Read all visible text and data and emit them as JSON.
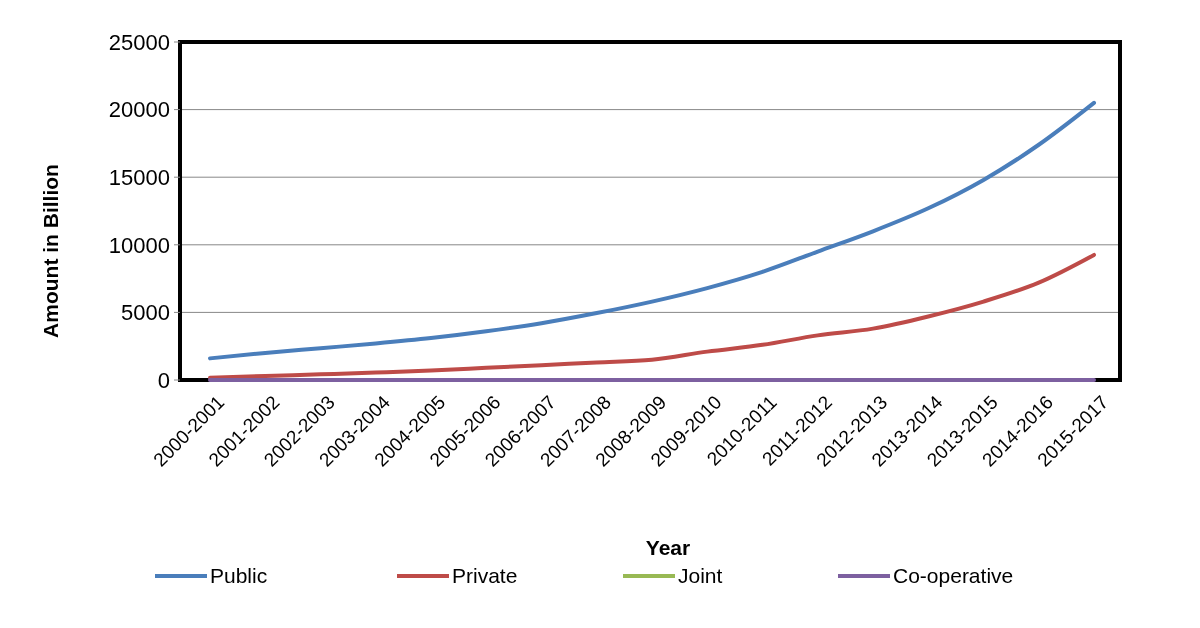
{
  "chart_data": {
    "type": "line",
    "xlabel": "Year",
    "ylabel": "Amount in Billion",
    "categories": [
      "2000-2001",
      "2001-2002",
      "2002-2003",
      "2003-2004",
      "2004-2005",
      "2005-2006",
      "2006-2007",
      "2007-2008",
      "2008-2009",
      "2009-2010",
      "2010-2011",
      "2011-2012",
      "2012-2013",
      "2013-2014",
      "2013-2015",
      "2014-2016",
      "2015-2017"
    ],
    "series": [
      {
        "name": "Public",
        "color": "#4a7ebb",
        "values": [
          1600,
          2000,
          2350,
          2700,
          3100,
          3600,
          4200,
          4950,
          5800,
          6800,
          8000,
          9500,
          11000,
          12700,
          14800,
          17400,
          20500
        ]
      },
      {
        "name": "Private",
        "color": "#be4b48",
        "values": [
          170,
          300,
          420,
          550,
          700,
          900,
          1100,
          1300,
          1500,
          2100,
          2600,
          3300,
          3800,
          4700,
          5800,
          7200,
          9250
        ]
      },
      {
        "name": "Joint",
        "color": "#98b954",
        "values": [
          null,
          null,
          null,
          null,
          null,
          null,
          null,
          null,
          null,
          null,
          null,
          null,
          null,
          null,
          null,
          null,
          null
        ]
      },
      {
        "name": "Co-operative",
        "color": "#7d60a0",
        "values": [
          0,
          0,
          0,
          0,
          0,
          0,
          0,
          0,
          0,
          0,
          0,
          0,
          0,
          0,
          0,
          0,
          0
        ]
      }
    ],
    "ylim": [
      0,
      25000
    ],
    "yticks": [
      0,
      5000,
      10000,
      15000,
      20000,
      25000
    ],
    "grid": "y",
    "legend": "bottom",
    "marker": "none",
    "line_style": "solid"
  }
}
